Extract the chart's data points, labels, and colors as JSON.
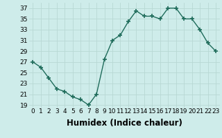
{
  "x": [
    0,
    1,
    2,
    3,
    4,
    5,
    6,
    7,
    8,
    9,
    10,
    11,
    12,
    13,
    14,
    15,
    16,
    17,
    18,
    19,
    20,
    21,
    22,
    23
  ],
  "y": [
    27,
    26,
    24,
    22,
    21.5,
    20.5,
    20,
    19,
    21,
    27.5,
    31,
    32,
    34.5,
    36.5,
    35.5,
    35.5,
    35,
    37,
    37,
    35,
    35,
    33,
    30.5,
    29
  ],
  "xlabel": "Humidex (Indice chaleur)",
  "xlim": [
    -0.5,
    23.5
  ],
  "ylim": [
    18.5,
    38
  ],
  "yticks": [
    19,
    21,
    23,
    25,
    27,
    29,
    31,
    33,
    35,
    37
  ],
  "ytick_labels": [
    "19",
    "21",
    "23",
    "25",
    "27",
    "29",
    "31",
    "33",
    "35",
    "37"
  ],
  "xticks": [
    0,
    1,
    2,
    3,
    4,
    5,
    6,
    7,
    8,
    9,
    10,
    11,
    12,
    13,
    14,
    15,
    16,
    17,
    18,
    19,
    20,
    21,
    22,
    23
  ],
  "line_color": "#1e6b5a",
  "marker": "+",
  "marker_size": 5,
  "marker_lw": 1.2,
  "line_width": 1.0,
  "bg_color": "#ceecea",
  "grid_color": "#b8d8d4",
  "tick_fontsize": 6.5,
  "xlabel_fontsize": 8.5
}
